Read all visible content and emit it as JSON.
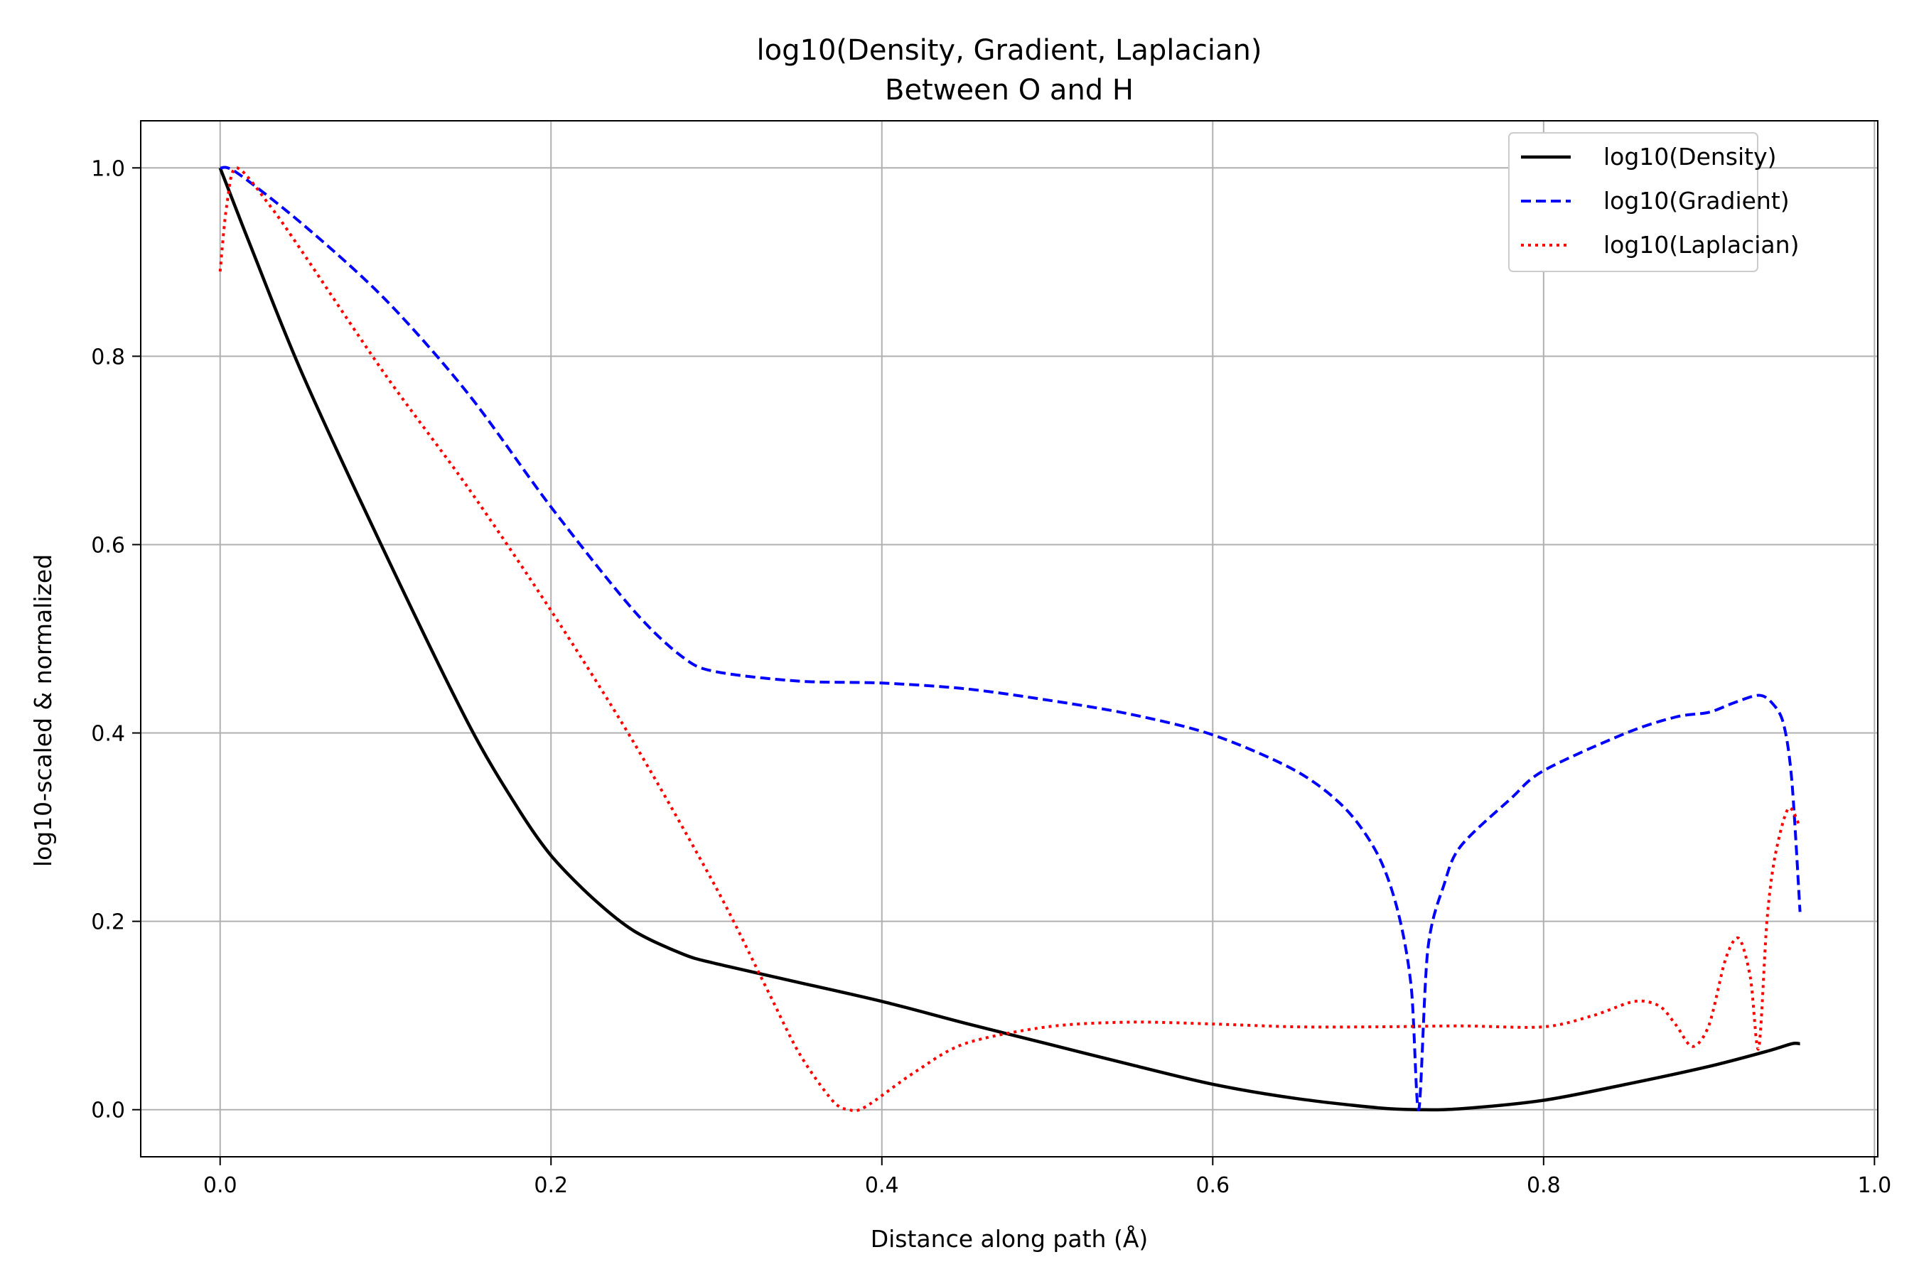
{
  "chart_data": {
    "type": "line",
    "title": "log10(Density, Gradient, Laplacian)",
    "subtitle": "Between O and H",
    "xlabel": "Distance along path (Å)",
    "ylabel": "log10-scaled & normalized",
    "xlim": [
      -0.048,
      1.002
    ],
    "ylim": [
      -0.05,
      1.05
    ],
    "grid": true,
    "legend_position": "top-right",
    "x_ticks": [
      0.0,
      0.2,
      0.4,
      0.6,
      0.8,
      1.0
    ],
    "x_tick_labels": [
      "0.0",
      "0.2",
      "0.4",
      "0.6",
      "0.8",
      "1.0"
    ],
    "y_ticks": [
      0.0,
      0.2,
      0.4,
      0.6,
      0.8,
      1.0
    ],
    "y_tick_labels": [
      "0.0",
      "0.2",
      "0.4",
      "0.6",
      "0.8",
      "1.0"
    ],
    "series": [
      {
        "name": "log10(Density)",
        "color": "#000000",
        "style": "solid",
        "points": [
          [
            0.0,
            1.0
          ],
          [
            0.02,
            0.91
          ],
          [
            0.05,
            0.78
          ],
          [
            0.1,
            0.59
          ],
          [
            0.15,
            0.41
          ],
          [
            0.18,
            0.32
          ],
          [
            0.2,
            0.27
          ],
          [
            0.225,
            0.225
          ],
          [
            0.25,
            0.19
          ],
          [
            0.28,
            0.165
          ],
          [
            0.3,
            0.155
          ],
          [
            0.35,
            0.135
          ],
          [
            0.4,
            0.115
          ],
          [
            0.45,
            0.092
          ],
          [
            0.5,
            0.07
          ],
          [
            0.55,
            0.048
          ],
          [
            0.6,
            0.027
          ],
          [
            0.65,
            0.012
          ],
          [
            0.7,
            0.002
          ],
          [
            0.725,
            0.0
          ],
          [
            0.75,
            0.001
          ],
          [
            0.8,
            0.01
          ],
          [
            0.85,
            0.027
          ],
          [
            0.9,
            0.046
          ],
          [
            0.935,
            0.062
          ],
          [
            0.95,
            0.07
          ],
          [
            0.955,
            0.07
          ]
        ]
      },
      {
        "name": "log10(Gradient)",
        "color": "#0000ff",
        "style": "dashed",
        "points": [
          [
            0.0,
            1.0
          ],
          [
            0.01,
            0.995
          ],
          [
            0.05,
            0.94
          ],
          [
            0.1,
            0.86
          ],
          [
            0.15,
            0.76
          ],
          [
            0.2,
            0.64
          ],
          [
            0.25,
            0.53
          ],
          [
            0.28,
            0.48
          ],
          [
            0.3,
            0.465
          ],
          [
            0.35,
            0.455
          ],
          [
            0.4,
            0.453
          ],
          [
            0.45,
            0.447
          ],
          [
            0.5,
            0.435
          ],
          [
            0.55,
            0.42
          ],
          [
            0.6,
            0.398
          ],
          [
            0.65,
            0.36
          ],
          [
            0.68,
            0.32
          ],
          [
            0.7,
            0.27
          ],
          [
            0.712,
            0.21
          ],
          [
            0.72,
            0.13
          ],
          [
            0.7245,
            0.0
          ],
          [
            0.73,
            0.17
          ],
          [
            0.74,
            0.24
          ],
          [
            0.75,
            0.28
          ],
          [
            0.78,
            0.33
          ],
          [
            0.8,
            0.36
          ],
          [
            0.85,
            0.4
          ],
          [
            0.88,
            0.417
          ],
          [
            0.9,
            0.422
          ],
          [
            0.915,
            0.432
          ],
          [
            0.93,
            0.44
          ],
          [
            0.938,
            0.432
          ],
          [
            0.945,
            0.41
          ],
          [
            0.95,
            0.35
          ],
          [
            0.955,
            0.21
          ]
        ]
      },
      {
        "name": "log10(Laplacian)",
        "color": "#ff0000",
        "style": "dotted",
        "points": [
          [
            0.0,
            0.89
          ],
          [
            0.004,
            0.96
          ],
          [
            0.01,
            1.0
          ],
          [
            0.03,
            0.96
          ],
          [
            0.05,
            0.91
          ],
          [
            0.1,
            0.78
          ],
          [
            0.15,
            0.66
          ],
          [
            0.2,
            0.53
          ],
          [
            0.25,
            0.39
          ],
          [
            0.3,
            0.235
          ],
          [
            0.33,
            0.13
          ],
          [
            0.35,
            0.06
          ],
          [
            0.37,
            0.01
          ],
          [
            0.38,
            0.0
          ],
          [
            0.39,
            0.003
          ],
          [
            0.42,
            0.04
          ],
          [
            0.45,
            0.07
          ],
          [
            0.5,
            0.088
          ],
          [
            0.55,
            0.093
          ],
          [
            0.6,
            0.091
          ],
          [
            0.65,
            0.088
          ],
          [
            0.7,
            0.088
          ],
          [
            0.75,
            0.089
          ],
          [
            0.8,
            0.088
          ],
          [
            0.83,
            0.1
          ],
          [
            0.855,
            0.115
          ],
          [
            0.87,
            0.11
          ],
          [
            0.88,
            0.09
          ],
          [
            0.89,
            0.067
          ],
          [
            0.9,
            0.09
          ],
          [
            0.91,
            0.16
          ],
          [
            0.918,
            0.182
          ],
          [
            0.925,
            0.14
          ],
          [
            0.93,
            0.065
          ],
          [
            0.935,
            0.2
          ],
          [
            0.94,
            0.27
          ],
          [
            0.948,
            0.32
          ],
          [
            0.955,
            0.3
          ]
        ]
      }
    ]
  }
}
